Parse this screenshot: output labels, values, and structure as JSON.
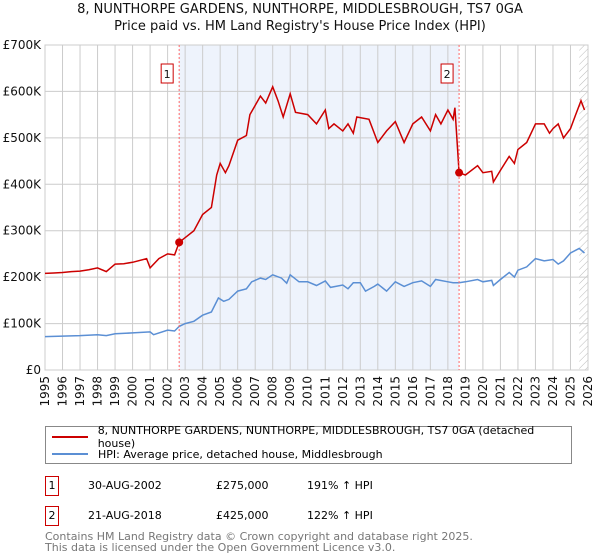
{
  "title_line1": "8, NUNTHORPE GARDENS, NUNTHORPE, MIDDLESBROUGH, TS7 0GA",
  "title_line2": "Price paid vs. HM Land Registry's House Price Index (HPI)",
  "chart_data": {
    "type": "line",
    "title": "8, NUNTHORPE GARDENS, NUNTHORPE, MIDDLESBROUGH, TS7 0GA — Price paid vs. HM Land Registry's House Price Index (HPI)",
    "xlim": [
      1995,
      2026
    ],
    "ylim": [
      0,
      700000
    ],
    "x_ticks": [
      "1995",
      "1996",
      "1997",
      "1998",
      "1999",
      "2000",
      "2001",
      "2002",
      "2003",
      "2004",
      "2005",
      "2006",
      "2007",
      "2008",
      "2009",
      "2010",
      "2011",
      "2012",
      "2013",
      "2014",
      "2015",
      "2016",
      "2017",
      "2018",
      "2019",
      "2020",
      "2021",
      "2022",
      "2023",
      "2024",
      "2025",
      "2026"
    ],
    "y_ticks": [
      {
        "v": 0,
        "label": "£0"
      },
      {
        "v": 100000,
        "label": "£100K"
      },
      {
        "v": 200000,
        "label": "£200K"
      },
      {
        "v": 300000,
        "label": "£300K"
      },
      {
        "v": 400000,
        "label": "£400K"
      },
      {
        "v": 500000,
        "label": "£500K"
      },
      {
        "v": 600000,
        "label": "£600K"
      },
      {
        "v": 700000,
        "label": "£700K"
      }
    ],
    "grid": true,
    "shaded_range": [
      2002.66,
      2018.64
    ],
    "hatched_from": 2025.5,
    "colors": {
      "property": "#cc0000",
      "hpi": "#5b8fd4",
      "shade": "#eef3fc",
      "marker": "#cc0000"
    },
    "series": [
      {
        "name": "8, NUNTHORPE GARDENS, NUNTHORPE, MIDDLESBROUGH, TS7 0GA (detached house)",
        "key": "property",
        "x": [
          1995,
          1995.5,
          1996,
          1996.5,
          1997,
          1997.5,
          1998,
          1998.5,
          1999,
          1999.5,
          2000,
          2000.8,
          2001,
          2001.5,
          2002,
          2002.4,
          2002.66,
          2003,
          2003.5,
          2004,
          2004.5,
          2004.8,
          2005,
          2005.3,
          2005.5,
          2006,
          2006.5,
          2006.7,
          2007,
          2007.3,
          2007.6,
          2008,
          2008.3,
          2008.6,
          2009,
          2009.3,
          2010,
          2010.5,
          2011,
          2011.2,
          2011.5,
          2012,
          2012.3,
          2012.6,
          2012.8,
          2013.5,
          2014,
          2014.5,
          2015,
          2015.5,
          2016,
          2016.5,
          2017,
          2017.3,
          2017.6,
          2018,
          2018.3,
          2018.4,
          2018.64,
          2019,
          2019.7,
          2020,
          2020.5,
          2020.6,
          2021,
          2021.5,
          2021.8,
          2022,
          2022.5,
          2023,
          2023.5,
          2023.8,
          2024,
          2024.3,
          2024.6,
          2025,
          2025.3,
          2025.6,
          2025.8
        ],
        "y": [
          208000,
          209000,
          210000,
          212000,
          213000,
          216000,
          220000,
          212000,
          228000,
          229000,
          232000,
          240000,
          220000,
          240000,
          250000,
          248000,
          275000,
          285000,
          300000,
          335000,
          350000,
          420000,
          445000,
          425000,
          440000,
          495000,
          505000,
          550000,
          570000,
          590000,
          575000,
          610000,
          580000,
          545000,
          595000,
          555000,
          550000,
          530000,
          560000,
          520000,
          530000,
          515000,
          530000,
          510000,
          545000,
          540000,
          490000,
          515000,
          535000,
          490000,
          530000,
          545000,
          515000,
          550000,
          530000,
          560000,
          540000,
          565000,
          425000,
          420000,
          440000,
          425000,
          428000,
          405000,
          430000,
          460000,
          445000,
          475000,
          490000,
          530000,
          530000,
          510000,
          520000,
          530000,
          500000,
          520000,
          550000,
          580000,
          560000
        ]
      },
      {
        "name": "HPI: Average price, detached house, Middlesbrough",
        "key": "hpi",
        "x": [
          1995,
          1996,
          1997,
          1998,
          1998.5,
          1999,
          2000,
          2001,
          2001.2,
          2002,
          2002.4,
          2002.66,
          2003,
          2003.5,
          2004,
          2004.5,
          2004.9,
          2005.2,
          2005.5,
          2006,
          2006.5,
          2006.8,
          2007.3,
          2007.6,
          2008,
          2008.5,
          2008.8,
          2009,
          2009.5,
          2010,
          2010.5,
          2011,
          2011.3,
          2012,
          2012.3,
          2012.6,
          2013,
          2013.3,
          2013.8,
          2014,
          2014.5,
          2015,
          2015.5,
          2016,
          2016.5,
          2017,
          2017.3,
          2018,
          2018.3,
          2018.64,
          2019,
          2019.7,
          2020,
          2020.5,
          2020.6,
          2021,
          2021.5,
          2021.8,
          2022,
          2022.5,
          2023,
          2023.5,
          2024,
          2024.3,
          2024.6,
          2025,
          2025.5,
          2025.8
        ],
        "y": [
          72000,
          73000,
          74000,
          76000,
          74000,
          78000,
          80000,
          82000,
          76000,
          86000,
          84000,
          94000,
          100000,
          105000,
          118000,
          125000,
          155000,
          148000,
          152000,
          170000,
          175000,
          190000,
          198000,
          195000,
          205000,
          198000,
          187000,
          205000,
          190000,
          190000,
          182000,
          192000,
          178000,
          183000,
          175000,
          188000,
          188000,
          170000,
          180000,
          185000,
          170000,
          190000,
          180000,
          188000,
          192000,
          180000,
          195000,
          190000,
          188000,
          188000,
          190000,
          195000,
          190000,
          193000,
          182000,
          195000,
          210000,
          200000,
          215000,
          222000,
          240000,
          235000,
          238000,
          228000,
          235000,
          252000,
          262000,
          252000
        ]
      }
    ],
    "annotations": [
      {
        "label": "1",
        "x": 2002.66,
        "y": 275000
      },
      {
        "label": "2",
        "x": 2018.64,
        "y": 425000
      }
    ]
  },
  "legend": [
    "8, NUNTHORPE GARDENS, NUNTHORPE, MIDDLESBROUGH, TS7 0GA (detached house)",
    "HPI: Average price, detached house, Middlesbrough"
  ],
  "transactions": [
    {
      "num": "1",
      "date": "30-AUG-2002",
      "price": "£275,000",
      "hpi": "191% ↑ HPI"
    },
    {
      "num": "2",
      "date": "21-AUG-2018",
      "price": "£425,000",
      "hpi": "122% ↑ HPI"
    }
  ],
  "footer": [
    "Contains HM Land Registry data © Crown copyright and database right 2025.",
    "This data is licensed under the Open Government Licence v3.0."
  ]
}
